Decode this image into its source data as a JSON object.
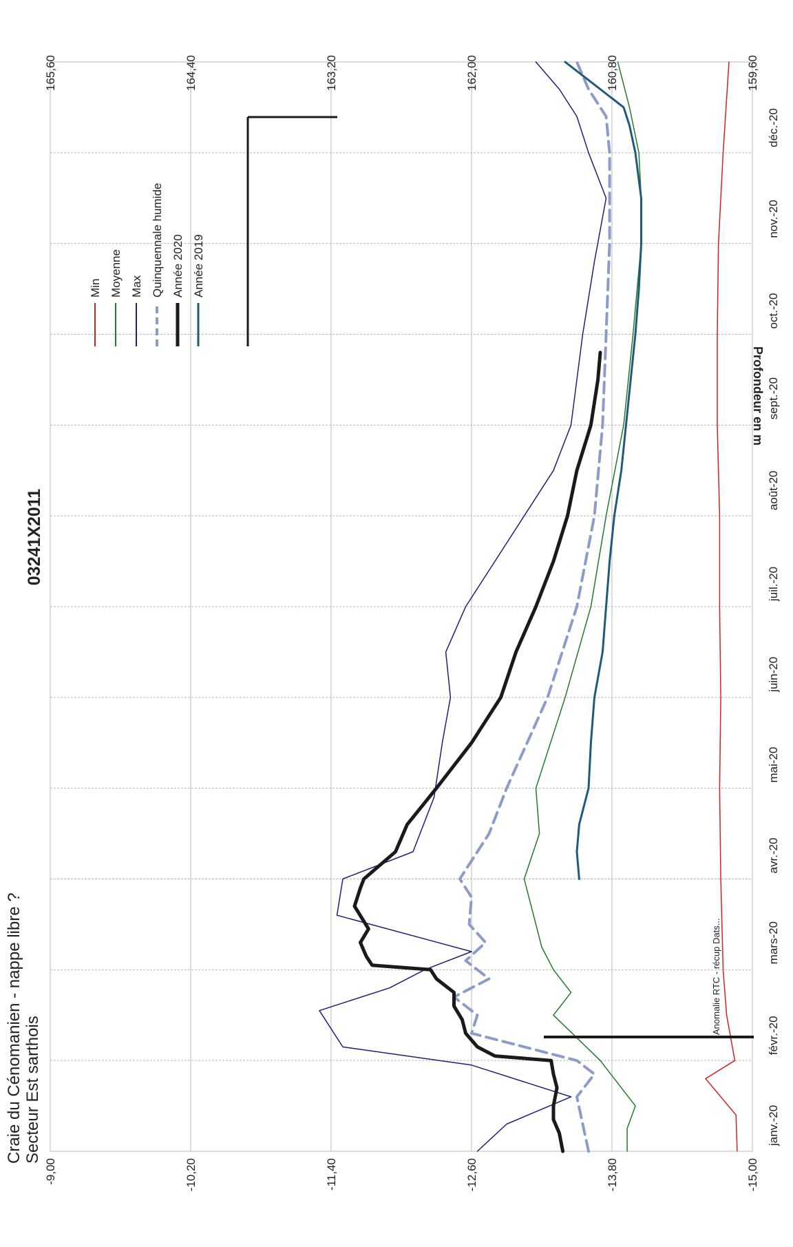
{
  "titles": {
    "line1": "Craie du Cénomanien - nappe libre ?",
    "line2": "Secteur Est sarthois",
    "station": "03241X2011"
  },
  "annotation": "Anomalie RTC - récup Dats...",
  "chart_data": {
    "type": "line",
    "orientation": "rotated 90° clockwise",
    "ylabel": "Profondeur en m",
    "ylim": [
      -15,
      -9
    ],
    "y_ticks": [
      "-9,00",
      "-10,20",
      "-11,40",
      "-12,60",
      "-13,80",
      "-15,00"
    ],
    "y2lim": [
      159.6,
      165.6
    ],
    "y2_ticks": [
      "165,60",
      "164,40",
      "163,20",
      "162,00",
      "160,80",
      "159,60"
    ],
    "x_ticks": [
      "janv.-20",
      "févr.-20",
      "mars-20",
      "avr.-20",
      "mai-20",
      "juin-20",
      "juil.-20",
      "août-20",
      "sept.-20",
      "oct.-20",
      "nov.-20",
      "déc.-20"
    ],
    "xlim_month_index": [
      0,
      12
    ],
    "grid": true,
    "legend_position": "top-right",
    "series": [
      {
        "name": "Min",
        "color": "#d42020",
        "width": 1.5,
        "dash": "",
        "x": [
          0,
          0.4,
          0.8,
          1.0,
          1.5,
          2,
          3,
          4,
          5,
          6,
          7,
          8,
          9,
          10,
          11,
          12
        ],
        "y": [
          -14.87,
          -14.86,
          -14.6,
          -14.85,
          -14.78,
          -14.75,
          -14.73,
          -14.72,
          -14.73,
          -14.72,
          -14.72,
          -14.7,
          -14.7,
          -14.71,
          -14.75,
          -14.8
        ]
      },
      {
        "name": "Moyenne",
        "color": "#1f7a2a",
        "width": 1.5,
        "dash": "",
        "x": [
          0,
          0.25,
          0.5,
          1.0,
          1.25,
          1.5,
          1.75,
          2.0,
          2.25,
          3.0,
          3.5,
          4.0,
          5.0,
          6.0,
          7.0,
          8.0,
          9.0,
          10.0,
          10.5,
          11.0,
          11.5,
          12.0
        ],
        "y": [
          -13.93,
          -13.93,
          -14.0,
          -13.7,
          -13.5,
          -13.3,
          -13.45,
          -13.3,
          -13.2,
          -13.05,
          -13.18,
          -13.15,
          -13.4,
          -13.62,
          -13.75,
          -13.9,
          -13.98,
          -14.05,
          -14.05,
          -14.03,
          -13.95,
          -13.85
        ]
      },
      {
        "name": "Max",
        "color": "#1c1f7a",
        "width": 1.5,
        "dash": "",
        "x": [
          0,
          0.3,
          0.6,
          0.95,
          1.15,
          1.55,
          1.8,
          2.0,
          2.2,
          2.6,
          3.0,
          3.3,
          3.9,
          4.5,
          5.0,
          5.5,
          6.0,
          6.5,
          7.0,
          7.5,
          8.0,
          9.0,
          9.8,
          10.5,
          11.0,
          11.4,
          11.7,
          12.0
        ],
        "y": [
          -12.65,
          -12.9,
          -13.45,
          -12.6,
          -11.5,
          -11.3,
          -11.9,
          -12.2,
          -12.6,
          -11.45,
          -11.5,
          -12.1,
          -12.28,
          -12.35,
          -12.42,
          -12.38,
          -12.55,
          -12.8,
          -13.05,
          -13.3,
          -13.45,
          -13.55,
          -13.65,
          -13.75,
          -13.6,
          -13.5,
          -13.35,
          -13.15
        ]
      },
      {
        "name": "Quinquennale humide",
        "color": "#8c9cc8",
        "width": 4,
        "dash": "16 9",
        "x": [
          0,
          0.3,
          0.6,
          0.85,
          1.0,
          1.1,
          1.3,
          1.5,
          1.7,
          1.9,
          2.1,
          2.3,
          2.5,
          2.8,
          3.0,
          3.5,
          4.0,
          5.0,
          6.0,
          7.0,
          8.0,
          9.0,
          10.0,
          11.0,
          11.4,
          11.7,
          12.0
        ],
        "y": [
          -13.6,
          -13.55,
          -13.5,
          -13.65,
          -13.5,
          -13.2,
          -12.6,
          -12.65,
          -12.45,
          -12.75,
          -12.55,
          -12.72,
          -12.58,
          -12.6,
          -12.5,
          -12.75,
          -12.9,
          -13.25,
          -13.5,
          -13.65,
          -13.72,
          -13.75,
          -13.78,
          -13.78,
          -13.75,
          -13.6,
          -13.5
        ]
      },
      {
        "name": "Année 2020",
        "color": "#1a1a1a",
        "width": 5,
        "dash": "",
        "x": [
          0,
          0.2,
          0.35,
          0.5,
          0.7,
          0.85,
          1.0,
          1.05,
          1.15,
          1.3,
          1.45,
          1.6,
          1.75,
          1.9,
          2.0,
          2.05,
          2.15,
          2.3,
          2.45,
          2.7,
          2.9,
          3.0,
          3.3,
          3.6,
          4.0,
          4.5,
          5.0,
          5.5,
          6.0,
          6.5,
          7.0,
          7.5,
          8.0,
          8.5,
          8.8
        ],
        "y": [
          -13.38,
          -13.35,
          -13.3,
          -13.3,
          -13.33,
          -13.3,
          -13.28,
          -12.8,
          -12.65,
          -12.55,
          -12.52,
          -12.45,
          -12.45,
          -12.3,
          -12.25,
          -11.75,
          -11.7,
          -11.65,
          -11.72,
          -11.6,
          -11.65,
          -11.68,
          -11.95,
          -12.05,
          -12.3,
          -12.6,
          -12.85,
          -12.98,
          -13.15,
          -13.3,
          -13.42,
          -13.5,
          -13.62,
          -13.68,
          -13.7
        ]
      },
      {
        "name": "Année 2019",
        "color": "#1f5a7a",
        "width": 3,
        "dash": "",
        "x": [
          3.0,
          3.3,
          3.6,
          4.0,
          4.5,
          5.0,
          5.5,
          6.0,
          6.5,
          7.0,
          7.5,
          8.0,
          8.5,
          9.0,
          9.5,
          10.0,
          10.5,
          11.0,
          11.3,
          11.5,
          11.7,
          11.85,
          12.0
        ],
        "y": [
          -13.52,
          -13.5,
          -13.52,
          -13.6,
          -13.62,
          -13.65,
          -13.72,
          -13.75,
          -13.78,
          -13.82,
          -13.88,
          -13.92,
          -13.96,
          -14.0,
          -14.03,
          -14.05,
          -14.05,
          -14.0,
          -13.95,
          -13.9,
          -13.7,
          -13.55,
          -13.4
        ]
      }
    ]
  }
}
